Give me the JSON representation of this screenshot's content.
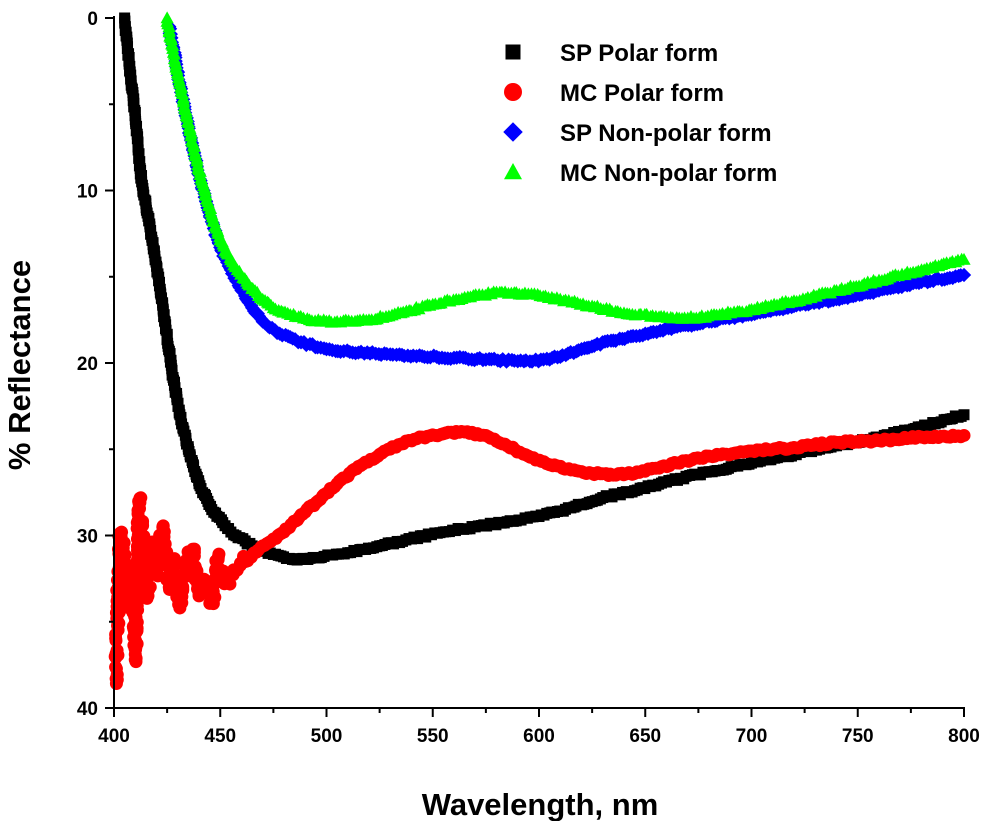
{
  "chart_data": {
    "type": "scatter",
    "title": "",
    "xlabel": "Wavelength, nm",
    "ylabel": "% Reflectance",
    "xlim": [
      400,
      800
    ],
    "ylim": [
      0,
      40
    ],
    "y_inverted": true,
    "x_ticks": [
      "400",
      "450",
      "500",
      "550",
      "600",
      "650",
      "700",
      "750",
      "800"
    ],
    "y_ticks": [
      "0",
      "10",
      "20",
      "30",
      "40"
    ],
    "legend_position": "top-right",
    "grid": false,
    "series": [
      {
        "name": "SP Polar form",
        "marker": "square",
        "color": "#000000",
        "points": [
          [
            405,
            0.0
          ],
          [
            407,
            2.5
          ],
          [
            409,
            4.5
          ],
          [
            411,
            7.0
          ],
          [
            413,
            9.5
          ],
          [
            416,
            11.5
          ],
          [
            419,
            13.5
          ],
          [
            422,
            16.0
          ],
          [
            425,
            18.5
          ],
          [
            428,
            21.0
          ],
          [
            431,
            23.0
          ],
          [
            435,
            25.0
          ],
          [
            440,
            27.0
          ],
          [
            446,
            28.5
          ],
          [
            455,
            29.8
          ],
          [
            465,
            30.6
          ],
          [
            475,
            31.1
          ],
          [
            485,
            31.4
          ],
          [
            495,
            31.3
          ],
          [
            510,
            31.0
          ],
          [
            525,
            30.6
          ],
          [
            540,
            30.2
          ],
          [
            555,
            29.8
          ],
          [
            570,
            29.5
          ],
          [
            585,
            29.2
          ],
          [
            600,
            28.9
          ],
          [
            615,
            28.4
          ],
          [
            630,
            27.8
          ],
          [
            645,
            27.4
          ],
          [
            660,
            26.9
          ],
          [
            680,
            26.3
          ],
          [
            700,
            25.8
          ],
          [
            720,
            25.3
          ],
          [
            740,
            24.8
          ],
          [
            760,
            24.3
          ],
          [
            780,
            23.7
          ],
          [
            800,
            23.0
          ]
        ]
      },
      {
        "name": "MC Polar form",
        "marker": "circle",
        "color": "#ff0000",
        "points": [
          [
            401,
            38.3
          ],
          [
            402,
            33.0
          ],
          [
            403,
            30.0
          ],
          [
            405,
            31.5
          ],
          [
            407,
            34.0
          ],
          [
            409,
            32.5
          ],
          [
            410,
            37.2
          ],
          [
            412,
            28.0
          ],
          [
            414,
            31.0
          ],
          [
            416,
            33.5
          ],
          [
            418,
            30.5
          ],
          [
            420,
            32.0
          ],
          [
            423,
            29.5
          ],
          [
            426,
            33.0
          ],
          [
            428,
            31.5
          ],
          [
            431,
            34.2
          ],
          [
            434,
            32.0
          ],
          [
            437,
            30.8
          ],
          [
            440,
            33.5
          ],
          [
            443,
            32.6
          ],
          [
            446,
            33.8
          ],
          [
            449,
            31.4
          ],
          [
            452,
            32.8
          ],
          [
            455,
            32.3
          ],
          [
            458,
            32.0
          ],
          [
            462,
            31.5
          ],
          [
            466,
            31.0
          ],
          [
            470,
            30.6
          ],
          [
            475,
            30.2
          ],
          [
            480,
            29.8
          ],
          [
            488,
            28.8
          ],
          [
            496,
            28.0
          ],
          [
            505,
            27.0
          ],
          [
            515,
            26.0
          ],
          [
            525,
            25.3
          ],
          [
            535,
            24.7
          ],
          [
            545,
            24.3
          ],
          [
            555,
            24.1
          ],
          [
            565,
            24.0
          ],
          [
            575,
            24.2
          ],
          [
            585,
            24.8
          ],
          [
            595,
            25.4
          ],
          [
            605,
            25.9
          ],
          [
            615,
            26.2
          ],
          [
            625,
            26.4
          ],
          [
            635,
            26.5
          ],
          [
            645,
            26.4
          ],
          [
            655,
            26.1
          ],
          [
            665,
            25.8
          ],
          [
            680,
            25.4
          ],
          [
            700,
            25.1
          ],
          [
            720,
            24.9
          ],
          [
            740,
            24.6
          ],
          [
            760,
            24.5
          ],
          [
            780,
            24.3
          ],
          [
            800,
            24.2
          ]
        ]
      },
      {
        "name": "SP Non-polar form",
        "marker": "diamond",
        "color": "#0000ff",
        "points": [
          [
            426,
            0.5
          ],
          [
            429,
            2.5
          ],
          [
            432,
            4.5
          ],
          [
            435,
            6.3
          ],
          [
            438,
            8.0
          ],
          [
            441,
            9.6
          ],
          [
            444,
            11.0
          ],
          [
            447,
            12.2
          ],
          [
            450,
            13.3
          ],
          [
            455,
            14.6
          ],
          [
            460,
            15.8
          ],
          [
            465,
            16.8
          ],
          [
            470,
            17.6
          ],
          [
            478,
            18.3
          ],
          [
            488,
            18.8
          ],
          [
            500,
            19.2
          ],
          [
            515,
            19.4
          ],
          [
            530,
            19.5
          ],
          [
            545,
            19.6
          ],
          [
            560,
            19.7
          ],
          [
            575,
            19.8
          ],
          [
            590,
            19.9
          ],
          [
            605,
            19.8
          ],
          [
            620,
            19.2
          ],
          [
            635,
            18.7
          ],
          [
            650,
            18.3
          ],
          [
            665,
            17.9
          ],
          [
            680,
            17.6
          ],
          [
            700,
            17.2
          ],
          [
            720,
            16.7
          ],
          [
            740,
            16.3
          ],
          [
            760,
            15.8
          ],
          [
            780,
            15.3
          ],
          [
            800,
            14.9
          ]
        ]
      },
      {
        "name": "MC Non-polar form",
        "marker": "triangle",
        "color": "#00ff00",
        "points": [
          [
            425,
            0.0
          ],
          [
            428,
            2.0
          ],
          [
            431,
            3.8
          ],
          [
            434,
            5.5
          ],
          [
            437,
            7.2
          ],
          [
            440,
            8.8
          ],
          [
            443,
            10.2
          ],
          [
            446,
            11.4
          ],
          [
            449,
            12.5
          ],
          [
            453,
            13.6
          ],
          [
            458,
            14.6
          ],
          [
            463,
            15.4
          ],
          [
            468,
            16.1
          ],
          [
            475,
            16.8
          ],
          [
            483,
            17.2
          ],
          [
            492,
            17.5
          ],
          [
            505,
            17.6
          ],
          [
            520,
            17.5
          ],
          [
            535,
            17.1
          ],
          [
            550,
            16.6
          ],
          [
            565,
            16.2
          ],
          [
            580,
            15.9
          ],
          [
            595,
            16.0
          ],
          [
            610,
            16.3
          ],
          [
            625,
            16.7
          ],
          [
            640,
            17.1
          ],
          [
            655,
            17.3
          ],
          [
            670,
            17.4
          ],
          [
            685,
            17.2
          ],
          [
            700,
            16.9
          ],
          [
            720,
            16.4
          ],
          [
            740,
            15.8
          ],
          [
            760,
            15.2
          ],
          [
            780,
            14.6
          ],
          [
            800,
            14.0
          ]
        ]
      }
    ]
  }
}
